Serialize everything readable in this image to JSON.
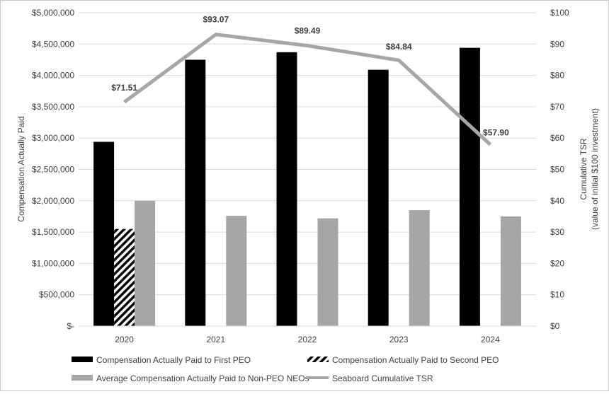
{
  "chart_data": {
    "type": "bar",
    "categories": [
      "2020",
      "2021",
      "2022",
      "2023",
      "2024"
    ],
    "ylabel": "Compensation Actually Paid",
    "ylabel_right": [
      "Cumulative TSR",
      "(value of initial $100 investment)"
    ],
    "ylim": [
      0,
      5000000
    ],
    "ylim_right": [
      0,
      100
    ],
    "y_ticks": [
      "$-",
      "$500,000",
      "$1,000,000",
      "$1,500,000",
      "$2,000,000",
      "$2,500,000",
      "$3,000,000",
      "$3,500,000",
      "$4,000,000",
      "$4,500,000",
      "$5,000,000"
    ],
    "y_right_ticks": [
      "$0",
      "$10",
      "$20",
      "$30",
      "$40",
      "$50",
      "$60",
      "$70",
      "$80",
      "$90",
      "$100"
    ],
    "grid": true,
    "legend_position": "bottom",
    "series": [
      {
        "name": "Compensation Actually Paid to First PEO",
        "kind": "bar",
        "axis": "left",
        "color": "#000000",
        "values": [
          2940000,
          4250000,
          4370000,
          4090000,
          4440000
        ]
      },
      {
        "name": "Compensation Actually Paid to Second PEO",
        "kind": "bar",
        "axis": "left",
        "color": "#000000",
        "pattern": "diagonal-hatch",
        "values": [
          1550000,
          null,
          null,
          null,
          null
        ]
      },
      {
        "name": "Average Compensation Actually Paid to Non-PEO NEOs",
        "kind": "bar",
        "axis": "left",
        "color": "#a6a6a6",
        "values": [
          2000000,
          1760000,
          1720000,
          1850000,
          1750000
        ]
      },
      {
        "name": "Seaboard Cumulative TSR",
        "kind": "line",
        "axis": "right",
        "color": "#a6a6a6",
        "values": [
          71.51,
          93.07,
          89.49,
          84.84,
          57.9
        ],
        "labels": [
          "$71.51",
          "$93.07",
          "$89.49",
          "$84.84",
          "$57.90"
        ]
      }
    ]
  }
}
